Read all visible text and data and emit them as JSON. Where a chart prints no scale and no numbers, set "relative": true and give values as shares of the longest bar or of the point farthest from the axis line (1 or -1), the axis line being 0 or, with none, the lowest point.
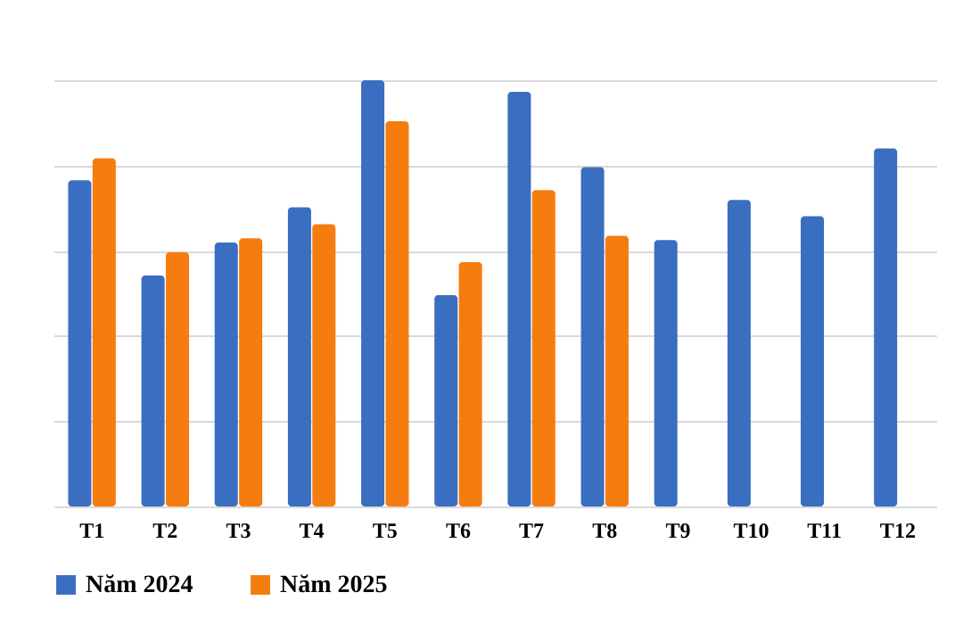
{
  "chart_data": {
    "type": "bar",
    "relative": true,
    "grid": "y",
    "legend": "bottom",
    "categories": [
      "T1",
      "T2",
      "T3",
      "T4",
      "T5",
      "T6",
      "T7",
      "T8",
      "T9",
      "T10",
      "T11",
      "T12"
    ],
    "series": [
      {
        "name": "Năm 2024",
        "color": "#3a6ec0",
        "values": [
          0.765,
          0.542,
          0.619,
          0.702,
          1,
          0.496,
          0.973,
          0.796,
          0.625,
          0.719,
          0.681,
          0.84
        ]
      },
      {
        "name": "Năm 2025",
        "color": "#f57c0e",
        "values": [
          0.817,
          0.596,
          0.629,
          0.662,
          0.904,
          0.573,
          0.742,
          0.635,
          null,
          null,
          null,
          null
        ]
      }
    ]
  }
}
